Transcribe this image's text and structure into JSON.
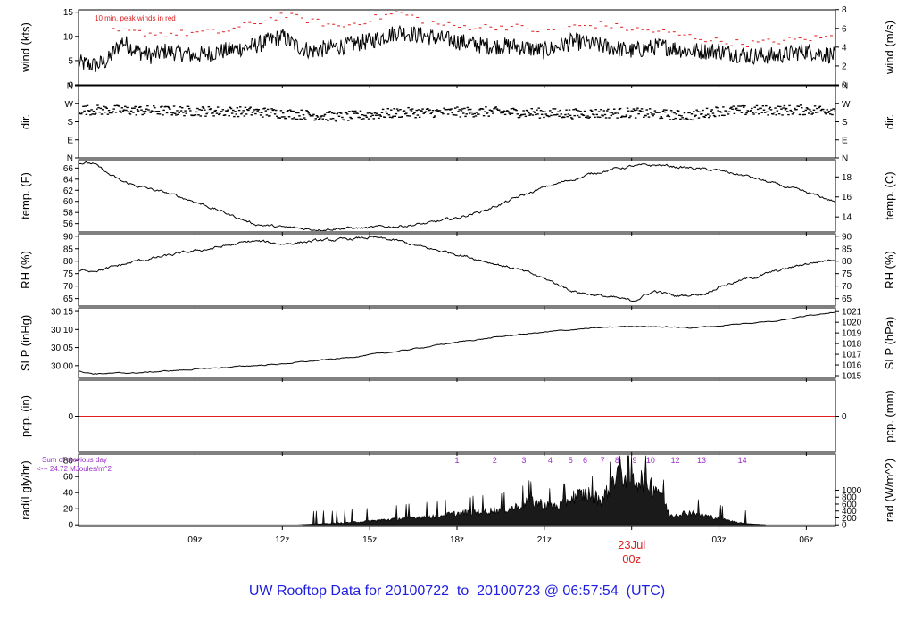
{
  "footer": {
    "prefix": "UW Rooftop Data for ",
    "start": "20100722",
    "to_word": "to",
    "end": "20100723 @ 06:57:54",
    "tz": "(UTC)"
  },
  "colors": {
    "footer_text": "#1f1fe0",
    "date_label": "#e01f1f",
    "peak": "#e01f1f",
    "rad_note": "#9b2fc9",
    "pcp_line": "#e01f1f",
    "line": "#000000"
  },
  "x_axis": {
    "hours_span": [
      5.0,
      31.0
    ],
    "ticks": [
      {
        "hour": 9,
        "label": "09z"
      },
      {
        "hour": 12,
        "label": "12z"
      },
      {
        "hour": 15,
        "label": "15z"
      },
      {
        "hour": 18,
        "label": "18z"
      },
      {
        "hour": 21,
        "label": "21z"
      },
      {
        "hour": 27,
        "label": "03z"
      },
      {
        "hour": 30,
        "label": "06z"
      }
    ],
    "date_label": {
      "hour": 24,
      "line1": "23Jul",
      "line2": "00z"
    }
  },
  "chart_data": [
    {
      "id": "wind",
      "type": "line",
      "ylabel_left": "wind (kts)",
      "ylabel_right": "wind (m/s)",
      "ylim": [
        0,
        15.5
      ],
      "left_ticks": [
        0,
        5,
        10,
        15
      ],
      "right_ticks": [
        {
          "v": 0,
          "label": "0"
        },
        {
          "v": 3.89,
          "label": "2"
        },
        {
          "v": 7.78,
          "label": "4"
        },
        {
          "v": 11.66,
          "label": "6"
        },
        {
          "v": 15.55,
          "label": "8"
        }
      ],
      "annotation": "10 min. peak winds in red",
      "keypoints": [
        [
          5.0,
          4.5
        ],
        [
          5.6,
          4
        ],
        [
          6.0,
          5
        ],
        [
          6.5,
          9
        ],
        [
          7.0,
          7
        ],
        [
          7.5,
          6
        ],
        [
          8.0,
          7
        ],
        [
          9.0,
          6
        ],
        [
          10.0,
          7
        ],
        [
          11.0,
          8
        ],
        [
          12.0,
          10
        ],
        [
          12.5,
          8
        ],
        [
          13.0,
          7
        ],
        [
          14.0,
          8
        ],
        [
          15.0,
          9
        ],
        [
          16.0,
          11
        ],
        [
          17.0,
          10
        ],
        [
          18.0,
          9
        ],
        [
          19.0,
          8
        ],
        [
          20.0,
          8
        ],
        [
          21.0,
          7
        ],
        [
          22.0,
          9
        ],
        [
          23.0,
          8
        ],
        [
          24.0,
          7
        ],
        [
          25.0,
          8
        ],
        [
          26.0,
          7
        ],
        [
          27.0,
          7
        ],
        [
          28.0,
          6
        ],
        [
          29.0,
          6
        ],
        [
          30.0,
          7
        ],
        [
          31.0,
          6
        ]
      ],
      "noise": 1.8,
      "peak_keypoints": [
        [
          6.5,
          11
        ],
        [
          8.0,
          10.5
        ],
        [
          10.0,
          11
        ],
        [
          11.5,
          13.5
        ],
        [
          12.0,
          14.5
        ],
        [
          14.0,
          12
        ],
        [
          16.0,
          15
        ],
        [
          17.0,
          13
        ],
        [
          18.0,
          12
        ],
        [
          20.0,
          12
        ],
        [
          21.0,
          11
        ],
        [
          22.0,
          12
        ],
        [
          23.0,
          12.5
        ],
        [
          24.0,
          11.5
        ],
        [
          25.0,
          11
        ],
        [
          26.0,
          10
        ],
        [
          27.0,
          9
        ],
        [
          28.0,
          8.5
        ],
        [
          29.0,
          9
        ],
        [
          30.0,
          9.5
        ],
        [
          31.0,
          10
        ]
      ]
    },
    {
      "id": "dir",
      "type": "scatter",
      "ylabel_left": "dir.",
      "ylabel_right": "dir.",
      "ylim": [
        0,
        360
      ],
      "left_ticks": [
        {
          "v": 0,
          "label": "N"
        },
        {
          "v": 90,
          "label": "E"
        },
        {
          "v": 180,
          "label": "S"
        },
        {
          "v": 270,
          "label": "W"
        },
        {
          "v": 360,
          "label": "N"
        }
      ],
      "right_ticks": [
        {
          "v": 0,
          "label": "N"
        },
        {
          "v": 90,
          "label": "E"
        },
        {
          "v": 180,
          "label": "S"
        },
        {
          "v": 270,
          "label": "W"
        },
        {
          "v": 360,
          "label": "N"
        }
      ],
      "keypoints": [
        [
          5.0,
          240
        ],
        [
          8.0,
          235
        ],
        [
          11.0,
          230
        ],
        [
          14.0,
          205
        ],
        [
          16.0,
          225
        ],
        [
          19.0,
          230
        ],
        [
          22.0,
          220
        ],
        [
          24.0,
          225
        ],
        [
          26.0,
          210
        ],
        [
          27.0,
          235
        ],
        [
          31.0,
          240
        ]
      ],
      "noise": 25
    },
    {
      "id": "temp",
      "type": "line",
      "ylabel_left": "temp. (F)",
      "ylabel_right": "temp. (C)",
      "ylim": [
        54.5,
        67.5
      ],
      "left_ticks": [
        56,
        58,
        60,
        62,
        64,
        66
      ],
      "right_ticks": [
        {
          "v": 57.2,
          "label": "14"
        },
        {
          "v": 60.8,
          "label": "16"
        },
        {
          "v": 64.4,
          "label": "18"
        }
      ],
      "keypoints": [
        [
          5.0,
          67
        ],
        [
          5.5,
          66.8
        ],
        [
          6.0,
          65
        ],
        [
          6.5,
          63.5
        ],
        [
          7.0,
          62.8
        ],
        [
          8.0,
          61.5
        ],
        [
          9.0,
          60
        ],
        [
          10.0,
          58
        ],
        [
          11.0,
          56
        ],
        [
          12.0,
          55.3
        ],
        [
          13.0,
          55
        ],
        [
          14.0,
          55.2
        ],
        [
          15.0,
          55.2
        ],
        [
          16.0,
          55.6
        ],
        [
          17.0,
          56
        ],
        [
          18.0,
          57
        ],
        [
          19.0,
          58.5
        ],
        [
          20.0,
          60.5
        ],
        [
          21.0,
          62.5
        ],
        [
          22.0,
          64
        ],
        [
          23.0,
          65.5
        ],
        [
          24.0,
          66.3
        ],
        [
          25.0,
          66.5
        ],
        [
          26.0,
          66
        ],
        [
          27.0,
          65.5
        ],
        [
          28.0,
          64.5
        ],
        [
          29.0,
          63
        ],
        [
          30.0,
          61.5
        ],
        [
          31.0,
          60
        ]
      ],
      "noise": 0.35
    },
    {
      "id": "rh",
      "type": "line",
      "ylabel_left": "RH (%)",
      "ylabel_right": "RH (%)",
      "ylim": [
        62,
        91
      ],
      "left_ticks": [
        65,
        70,
        75,
        80,
        85,
        90
      ],
      "right_ticks": [
        {
          "v": 65,
          "label": "65"
        },
        {
          "v": 70,
          "label": "70"
        },
        {
          "v": 75,
          "label": "75"
        },
        {
          "v": 80,
          "label": "80"
        },
        {
          "v": 85,
          "label": "85"
        },
        {
          "v": 90,
          "label": "90"
        }
      ],
      "keypoints": [
        [
          5.0,
          76
        ],
        [
          6.0,
          77
        ],
        [
          7.0,
          80
        ],
        [
          8.0,
          82
        ],
        [
          9.0,
          84
        ],
        [
          10.0,
          86
        ],
        [
          11.0,
          88
        ],
        [
          12.0,
          87
        ],
        [
          13.0,
          88
        ],
        [
          14.0,
          88.5
        ],
        [
          15.0,
          89.5
        ],
        [
          16.0,
          88
        ],
        [
          17.0,
          85
        ],
        [
          18.0,
          83
        ],
        [
          19.0,
          80
        ],
        [
          20.0,
          77
        ],
        [
          21.0,
          73
        ],
        [
          22.0,
          68
        ],
        [
          23.0,
          66
        ],
        [
          24.0,
          64
        ],
        [
          24.8,
          68
        ],
        [
          25.5,
          66
        ],
        [
          26.5,
          67
        ],
        [
          27.0,
          70
        ],
        [
          28.0,
          73
        ],
        [
          29.0,
          76
        ],
        [
          30.0,
          79
        ],
        [
          31.0,
          81
        ]
      ],
      "noise": 0.8
    },
    {
      "id": "slp",
      "type": "line",
      "ylabel_left": "SLP (inHg)",
      "ylabel_right": "SLP (hPa)",
      "ylim": [
        29.965,
        30.16
      ],
      "left_ticks": [
        {
          "v": 30.0,
          "label": "30.00"
        },
        {
          "v": 30.05,
          "label": "30.05"
        },
        {
          "v": 30.1,
          "label": "30.10"
        },
        {
          "v": 30.15,
          "label": "30.15"
        }
      ],
      "right_ticks": [
        {
          "v": 29.9724,
          "label": "1015"
        },
        {
          "v": 30.0019,
          "label": "1016"
        },
        {
          "v": 30.0315,
          "label": "1017"
        },
        {
          "v": 30.061,
          "label": "1018"
        },
        {
          "v": 30.0905,
          "label": "1019"
        },
        {
          "v": 30.1201,
          "label": "1020"
        },
        {
          "v": 30.1496,
          "label": "1021"
        }
      ],
      "keypoints": [
        [
          5.0,
          29.985
        ],
        [
          5.5,
          29.978
        ],
        [
          7.0,
          29.98
        ],
        [
          9.0,
          29.99
        ],
        [
          11.0,
          30.0
        ],
        [
          12.0,
          30.005
        ],
        [
          14.0,
          30.02
        ],
        [
          16.0,
          30.04
        ],
        [
          18.0,
          30.065
        ],
        [
          20.0,
          30.085
        ],
        [
          22.0,
          30.1
        ],
        [
          24.0,
          30.11
        ],
        [
          26.0,
          30.105
        ],
        [
          27.0,
          30.11
        ],
        [
          29.0,
          30.125
        ],
        [
          31.0,
          30.15
        ]
      ],
      "noise": 0.002
    },
    {
      "id": "pcp",
      "type": "line",
      "ylabel_left": "pcp. (in)",
      "ylabel_right": "pcp. (mm)",
      "ylim": [
        -0.5,
        0.5
      ],
      "left_ticks": [
        {
          "v": 0,
          "label": "0"
        }
      ],
      "right_ticks": [
        {
          "v": 0,
          "label": "0"
        }
      ],
      "keypoints": [
        [
          5.0,
          0
        ],
        [
          31.0,
          0
        ]
      ],
      "noise": 0
    },
    {
      "id": "rad",
      "type": "area",
      "ylabel_left": "rad(Lgly/hr)",
      "ylabel_right": "rad (W/m^2)",
      "ylim": [
        -2,
        88
      ],
      "left_ticks": [
        0,
        20,
        40,
        60,
        80
      ],
      "right_ticks": [
        {
          "v": 0,
          "label": "0"
        },
        {
          "v": 8.6,
          "label": "200"
        },
        {
          "v": 17.2,
          "label": "400"
        },
        {
          "v": 25.8,
          "label": "600"
        },
        {
          "v": 34.4,
          "label": "800"
        },
        {
          "v": 43.0,
          "label": "1000"
        }
      ],
      "note_line1": "Sum of previous day",
      "note_line2": "<--- 24.72 MJoules/m^2",
      "hour_marks": [
        {
          "hour": 18.0,
          "label": "1"
        },
        {
          "hour": 19.3,
          "label": "2"
        },
        {
          "hour": 20.3,
          "label": "3"
        },
        {
          "hour": 21.2,
          "label": "4"
        },
        {
          "hour": 21.9,
          "label": "5"
        },
        {
          "hour": 22.4,
          "label": "6"
        },
        {
          "hour": 23.0,
          "label": "7"
        },
        {
          "hour": 23.5,
          "label": "8"
        },
        {
          "hour": 24.1,
          "label": "9"
        },
        {
          "hour": 24.65,
          "label": "10"
        },
        {
          "hour": 25.5,
          "label": "12"
        },
        {
          "hour": 26.4,
          "label": "13"
        },
        {
          "hour": 27.8,
          "label": "14"
        }
      ],
      "keypoints": [
        [
          5.0,
          0
        ],
        [
          12.5,
          0
        ],
        [
          13.0,
          1
        ],
        [
          14.0,
          3
        ],
        [
          15.0,
          6
        ],
        [
          16.0,
          10
        ],
        [
          17.0,
          13
        ],
        [
          18.0,
          18
        ],
        [
          19.0,
          22
        ],
        [
          19.5,
          24
        ],
        [
          20.0,
          28
        ],
        [
          20.5,
          40
        ],
        [
          21.0,
          32
        ],
        [
          21.5,
          30
        ],
        [
          22.0,
          45
        ],
        [
          22.5,
          50
        ],
        [
          23.0,
          40
        ],
        [
          23.5,
          85
        ],
        [
          24.0,
          75
        ],
        [
          24.5,
          70
        ],
        [
          25.0,
          55
        ],
        [
          25.3,
          15
        ],
        [
          26.0,
          20
        ],
        [
          26.5,
          15
        ],
        [
          27.0,
          10
        ],
        [
          27.5,
          5
        ],
        [
          28.0,
          2
        ],
        [
          28.6,
          0
        ],
        [
          31.0,
          0
        ]
      ],
      "noise": 8
    }
  ]
}
